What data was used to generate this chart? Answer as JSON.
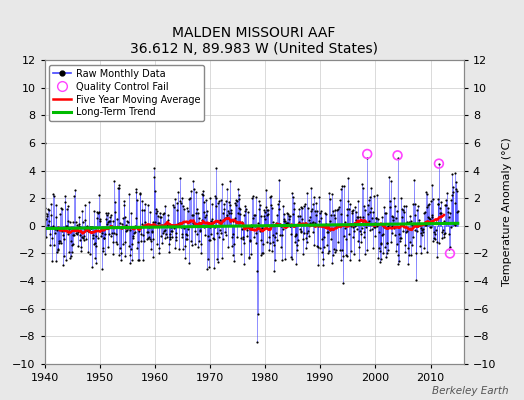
{
  "title": "MALDEN MISSOURI AAF",
  "subtitle": "36.612 N, 89.983 W (United States)",
  "ylabel": "Temperature Anomaly (°C)",
  "watermark": "Berkeley Earth",
  "ylim": [
    -10,
    12
  ],
  "yticks": [
    -10,
    -8,
    -6,
    -4,
    -2,
    0,
    2,
    4,
    6,
    8,
    10,
    12
  ],
  "xlim": [
    1940,
    2016
  ],
  "xticks": [
    1940,
    1950,
    1960,
    1970,
    1980,
    1990,
    2000,
    2010
  ],
  "line_color": "#4444ff",
  "dot_color": "#000000",
  "ma_color": "#ff0000",
  "trend_color": "#00bb00",
  "qc_color": "#ff44ff",
  "bg_color": "#e8e8e8",
  "plot_bg": "#ffffff",
  "grid_color": "#cccccc",
  "seed": 137,
  "n_years": 75,
  "start_year": 1940,
  "qc_years": [
    1998.5,
    2004.0,
    2011.5,
    2013.5
  ],
  "qc_vals": [
    5.2,
    5.1,
    4.5,
    -2.0
  ]
}
